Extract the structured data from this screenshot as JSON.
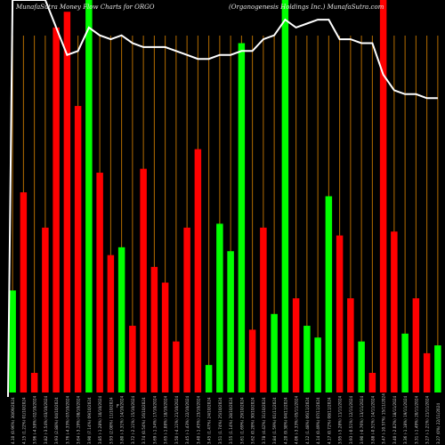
{
  "header": {
    "left": "MunafaSutra  Money Flow  Charts for ORGO",
    "right": "(Organogenesis Holdings Inc.) MunafaSutra.com"
  },
  "chart_data": {
    "type": "bar",
    "title": "Money Flow Charts for ORGO",
    "subtitle": "(Organogenesis Holdings Inc.)",
    "value_range": [
      0,
      100
    ],
    "bar_colors": {
      "green": "#00ff00",
      "red": "#ff0000"
    },
    "grid_color": "#b36b00",
    "grid": true,
    "line_color": "#ffffff",
    "bars": [
      {
        "label": "4.10 (0.96%) 30/09/2024",
        "color": "green",
        "value": 26
      },
      {
        "label": "4.15 (1.22%) 01/10/2024",
        "color": "red",
        "value": 51
      },
      {
        "label": "3.96 (-4.58%) 02/10/2024",
        "color": "red",
        "value": 5
      },
      {
        "label": "3.82 (-3.54%) 03/10/2024",
        "color": "red",
        "value": 42
      },
      {
        "label": "3.93 (2.88%) 04/10/2024",
        "color": "red",
        "value": 93
      },
      {
        "label": "3.76 (-4.33%) 07/10/2024",
        "color": "red",
        "value": 97
      },
      {
        "label": "3.64 (-3.19%) 08/10/2024",
        "color": "red",
        "value": 73
      },
      {
        "label": "3.90 (7.14%) 09/10/2024",
        "color": "green",
        "value": 100
      },
      {
        "label": "3.85 (-1.28%) 10/10/2024",
        "color": "red",
        "value": 56
      },
      {
        "label": "3.93 (2.08%) 11/10/2024",
        "color": "red",
        "value": 35
      },
      {
        "label": "3.80 (-3.31%) 14/10/2024",
        "color": "green",
        "value": 37
      },
      {
        "label": "3.72 (-2.11%) 15/10/2024",
        "color": "red",
        "value": 17
      },
      {
        "label": "3.74 (0.54%) 16/10/2024",
        "color": "red",
        "value": 57
      },
      {
        "label": "3.69 (-1.34%) 17/10/2024",
        "color": "red",
        "value": 32
      },
      {
        "label": "3.65 (-1.08%) 18/10/2024",
        "color": "red",
        "value": 28
      },
      {
        "label": "3.50 (-4.11%) 21/10/2024",
        "color": "red",
        "value": 13
      },
      {
        "label": "3.45 (-1.43%) 22/10/2024",
        "color": "red",
        "value": 42
      },
      {
        "label": "3.40 (-1.45%) 23/10/2024",
        "color": "red",
        "value": 62
      },
      {
        "label": "3.45 (1.47%) 24/10/2024",
        "color": "green",
        "value": 7
      },
      {
        "label": "3.51 (1.74%) 25/10/2024",
        "color": "green",
        "value": 43
      },
      {
        "label": "3.55 (1.14%) 28/10/2024",
        "color": "green",
        "value": 36
      },
      {
        "label": "3.61 (1.69%) 29/10/2024",
        "color": "green",
        "value": 89
      },
      {
        "label": "3.62 (0.28%) 30/10/2024",
        "color": "red",
        "value": 16
      },
      {
        "label": "3.78 (4.42%) 31/10/2024",
        "color": "red",
        "value": 42
      },
      {
        "label": "3.84 (1.59%) 01/11/2024",
        "color": "green",
        "value": 20
      },
      {
        "label": "4.20 (9.38%) 04/11/2024",
        "color": "green",
        "value": 100
      },
      {
        "label": "4.06 (-3.33%) 05/11/2024",
        "color": "red",
        "value": 24
      },
      {
        "label": "4.12 (1.48%) 06/11/2024",
        "color": "green",
        "value": 17
      },
      {
        "label": "4.14 (0.49%) 07/11/2024",
        "color": "green",
        "value": 14
      },
      {
        "label": "4.17 (0.72%) 08/11/2024",
        "color": "green",
        "value": 50
      },
      {
        "label": "3.95 (-5.28%) 11/11/2024",
        "color": "red",
        "value": 40
      },
      {
        "label": "3.93 (-0.51%) 12/11/2024",
        "color": "red",
        "value": 24
      },
      {
        "label": "3.90 (-0.76%) 13/11/2024",
        "color": "green",
        "value": 13
      },
      {
        "label": "3.88 (-0.51%) 14/11/2024",
        "color": "red",
        "value": 5
      },
      {
        "label": "3.47 (-10.57%) 15/11/2024",
        "color": "red",
        "value": 100
      },
      {
        "label": "3.40 (-2.02%) 18/11/2024",
        "color": "red",
        "value": 41
      },
      {
        "label": "3.36 (-1.18%) 19/11/2024",
        "color": "green",
        "value": 15
      },
      {
        "label": "3.31 (-1.49%) 20/11/2024",
        "color": "red",
        "value": 24
      },
      {
        "label": "3.27 (-1.21%) 21/11/2024",
        "color": "red",
        "value": 10
      },
      {
        "label": "3.27 (0%) 22/11/2024",
        "color": "green",
        "value": 12
      }
    ],
    "line": [
      100,
      100,
      100,
      100,
      93,
      86,
      87,
      93,
      91,
      90,
      91,
      89,
      88,
      88,
      88,
      87,
      86,
      85,
      85,
      86,
      86,
      87,
      87,
      90,
      91,
      95,
      93,
      94,
      95,
      95,
      90,
      90,
      89,
      89,
      81,
      77,
      76,
      76,
      75,
      75
    ],
    "footer_mark": "F"
  }
}
